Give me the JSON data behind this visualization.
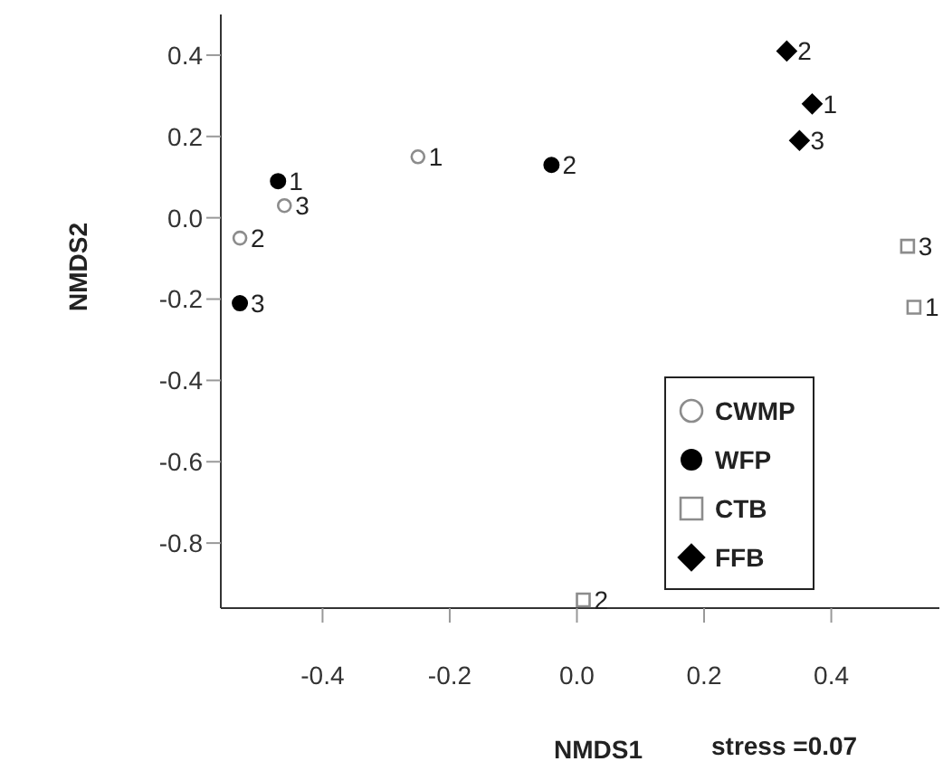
{
  "chart_data": {
    "type": "scatter",
    "xlabel": "NMDS1",
    "ylabel": "NMDS2",
    "xlim": [
      -0.56,
      0.57
    ],
    "xticks": [
      -0.4,
      -0.2,
      {
        "value": 0,
        "label": "0.0"
      },
      0.2,
      0.4
    ],
    "ylim": [
      -0.96,
      0.5
    ],
    "yticks": [
      -0.8,
      -0.6,
      -0.4,
      -0.2,
      {
        "value": 0,
        "label": "0.0"
      },
      0.2,
      0.4
    ],
    "grid": false,
    "legend": "bottom right",
    "series": [
      {
        "name": "CWMP",
        "color": "#8c8c8c",
        "marker": "circle",
        "x": [
          -0.25,
          -0.53,
          -0.46
        ],
        "values": [
          0.15,
          -0.05,
          0.03
        ]
      },
      {
        "name": "WFP",
        "color": "#000000",
        "marker": "circle",
        "x": [
          -0.47,
          -0.04,
          -0.53
        ],
        "values": [
          0.09,
          0.13,
          -0.21
        ]
      },
      {
        "name": "CTB",
        "color": "#8c8c8c",
        "marker": "square",
        "x": [
          0.53,
          0.01,
          0.52
        ],
        "values": [
          -0.22,
          -0.94,
          -0.07
        ]
      },
      {
        "name": "FFB",
        "color": "#000000",
        "marker": "diamond",
        "x": [
          0.37,
          0.33,
          0.35
        ],
        "values": [
          0.28,
          0.41,
          0.19
        ]
      }
    ],
    "annotations": [
      {
        "text": "1",
        "x": -0.25,
        "y": 0.15
      },
      {
        "text": "2",
        "x": -0.53,
        "y": -0.05
      },
      {
        "text": "3",
        "x": -0.46,
        "y": 0.03
      },
      {
        "text": "1",
        "x": -0.47,
        "y": 0.09
      },
      {
        "text": "2",
        "x": -0.04,
        "y": 0.13
      },
      {
        "text": "3",
        "x": -0.53,
        "y": -0.21
      },
      {
        "text": "1",
        "x": 0.53,
        "y": -0.22
      },
      {
        "text": "2",
        "x": 0.01,
        "y": -0.94
      },
      {
        "text": "3",
        "x": 0.52,
        "y": -0.07
      },
      {
        "text": "1",
        "x": 0.37,
        "y": 0.28
      },
      {
        "text": "2",
        "x": 0.33,
        "y": 0.41
      },
      {
        "text": "3",
        "x": 0.35,
        "y": 0.19
      },
      "stress =0.07"
    ]
  }
}
